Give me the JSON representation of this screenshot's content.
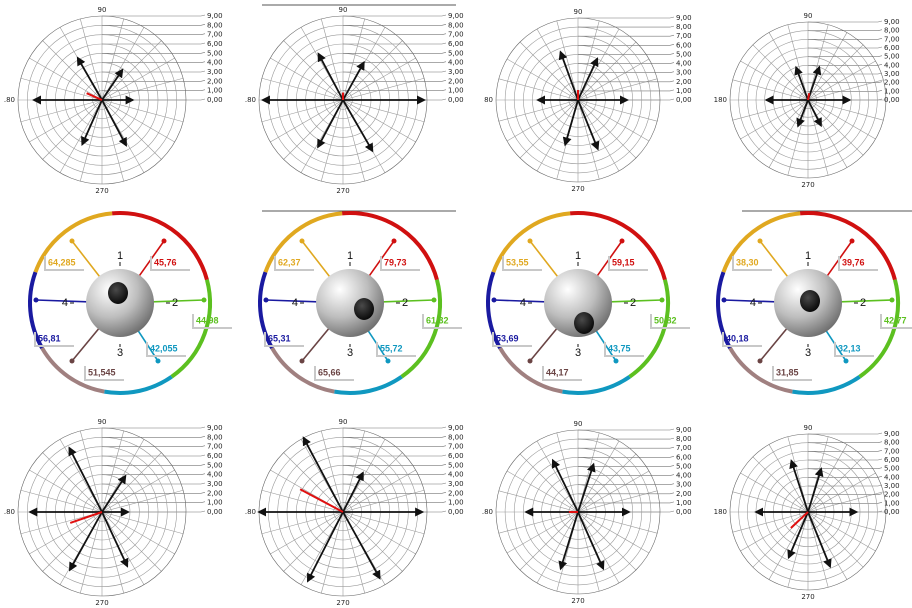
{
  "polar_axis": {
    "rlim": [
      0,
      9
    ],
    "rticks": [
      {
        "value": 0,
        "label": "0,00"
      },
      {
        "value": 1,
        "label": "1,00"
      },
      {
        "value": 2,
        "label": "2,00"
      },
      {
        "value": 3,
        "label": "3,00"
      },
      {
        "value": 4,
        "label": "4,00"
      },
      {
        "value": 5,
        "label": "5,00"
      },
      {
        "value": 6,
        "label": "6,00"
      },
      {
        "value": 7,
        "label": "7,00"
      },
      {
        "value": 8,
        "label": "8,00"
      },
      {
        "value": 9,
        "label": "9,00"
      }
    ],
    "top_label": "90",
    "bottom_label": "270",
    "vector_color": "#111111",
    "marker_color": "#e01010"
  },
  "polar_plots": [
    {
      "left_label": ".80",
      "vectors": [
        {
          "angle": 56,
          "magnitude": 3.9
        },
        {
          "angle": 120,
          "magnitude": 5.2
        },
        {
          "angle": 180,
          "magnitude": 7.3
        },
        {
          "angle": 0,
          "magnitude": 3.3
        },
        {
          "angle": 246,
          "magnitude": 5.2
        },
        {
          "angle": 298,
          "magnitude": 5.5
        }
      ],
      "marker": {
        "angle": 156,
        "magnitude": 1.8
      }
    },
    {
      "left_label": ".80",
      "vectors": [
        {
          "angle": 61,
          "magnitude": 4.6
        },
        {
          "angle": 118,
          "magnitude": 5.6
        },
        {
          "angle": 180,
          "magnitude": 8.6
        },
        {
          "angle": 0,
          "magnitude": 8.7
        },
        {
          "angle": 242,
          "magnitude": 5.7
        },
        {
          "angle": 300,
          "magnitude": 6.3
        }
      ],
      "marker": {
        "angle": 90,
        "magnitude": 0.8
      }
    },
    {
      "left_label": "80",
      "vectors": [
        {
          "angle": 65,
          "magnitude": 5.0
        },
        {
          "angle": 110,
          "magnitude": 5.6
        },
        {
          "angle": 180,
          "magnitude": 4.4
        },
        {
          "angle": 0,
          "magnitude": 5.4
        },
        {
          "angle": 254,
          "magnitude": 5.1
        },
        {
          "angle": 292,
          "magnitude": 5.8
        }
      ],
      "marker": {
        "angle": 90,
        "magnitude": 1.1
      }
    },
    {
      "left_label": "180",
      "vectors": [
        {
          "angle": 71,
          "magnitude": 4.0
        },
        {
          "angle": 110,
          "magnitude": 4.0
        },
        {
          "angle": 180,
          "magnitude": 4.8
        },
        {
          "angle": 0,
          "magnitude": 4.8
        },
        {
          "angle": 249,
          "magnitude": 3.2
        },
        {
          "angle": 297,
          "magnitude": 3.3
        }
      ],
      "marker": {
        "angle": 80,
        "magnitude": 0.8
      }
    },
    {
      "left_label": ".80",
      "vectors": [
        {
          "angle": 57,
          "magnitude": 4.6
        },
        {
          "angle": 117,
          "magnitude": 7.7
        },
        {
          "angle": 180,
          "magnitude": 7.7
        },
        {
          "angle": 0,
          "magnitude": 2.8
        },
        {
          "angle": 241,
          "magnitude": 7.1
        },
        {
          "angle": 295,
          "magnitude": 6.4
        }
      ],
      "marker": {
        "angle": 199,
        "magnitude": 3.6
      }
    },
    {
      "left_label": ".80",
      "vectors": [
        {
          "angle": 63,
          "magnitude": 4.7
        },
        {
          "angle": 118,
          "magnitude": 9.0
        },
        {
          "angle": 180,
          "magnitude": 9.0
        },
        {
          "angle": 0,
          "magnitude": 8.5
        },
        {
          "angle": 243,
          "magnitude": 8.3
        },
        {
          "angle": 299,
          "magnitude": 8.1
        }
      ],
      "marker": {
        "angle": 152,
        "magnitude": 5.2
      }
    },
    {
      "left_label": ".80",
      "vectors": [
        {
          "angle": 72,
          "magnitude": 5.5
        },
        {
          "angle": 116,
          "magnitude": 6.3
        },
        {
          "angle": 180,
          "magnitude": 5.7
        },
        {
          "angle": 0,
          "magnitude": 5.6
        },
        {
          "angle": 253,
          "magnitude": 6.5
        },
        {
          "angle": 294,
          "magnitude": 6.8
        }
      ],
      "marker": {
        "angle": 180,
        "magnitude": 1.0
      }
    },
    {
      "left_label": "180",
      "vectors": [
        {
          "angle": 73,
          "magnitude": 5.2
        },
        {
          "angle": 108,
          "magnitude": 6.2
        },
        {
          "angle": 180,
          "magnitude": 6.0
        },
        {
          "angle": 0,
          "magnitude": 5.6
        },
        {
          "angle": 247,
          "magnitude": 5.7
        },
        {
          "angle": 292,
          "magnitude": 6.8
        }
      ],
      "marker": {
        "angle": 223,
        "magnitude": 2.7
      }
    }
  ],
  "ball_axis_labels": [
    "1",
    "2",
    "3",
    "4"
  ],
  "ball_value_colors": [
    "#e0a820",
    "#d01010",
    "#5cc020",
    "#1098c0",
    "#6a4444",
    "#1a1aa0"
  ],
  "ball_panels": [
    {
      "values": [
        "64,285",
        "45,76",
        "44,98",
        "42,055",
        "51,545",
        "56,81"
      ]
    },
    {
      "values": [
        "62,37",
        "79,73",
        "61,32",
        "55,72",
        "65,66",
        "65,31"
      ]
    },
    {
      "values": [
        "53,55",
        "59,15",
        "50,82",
        "43,75",
        "44,17",
        "53,69"
      ]
    },
    {
      "values": [
        "38,30",
        "39,76",
        "42,77",
        "32,13",
        "31,85",
        "40,18"
      ]
    }
  ]
}
